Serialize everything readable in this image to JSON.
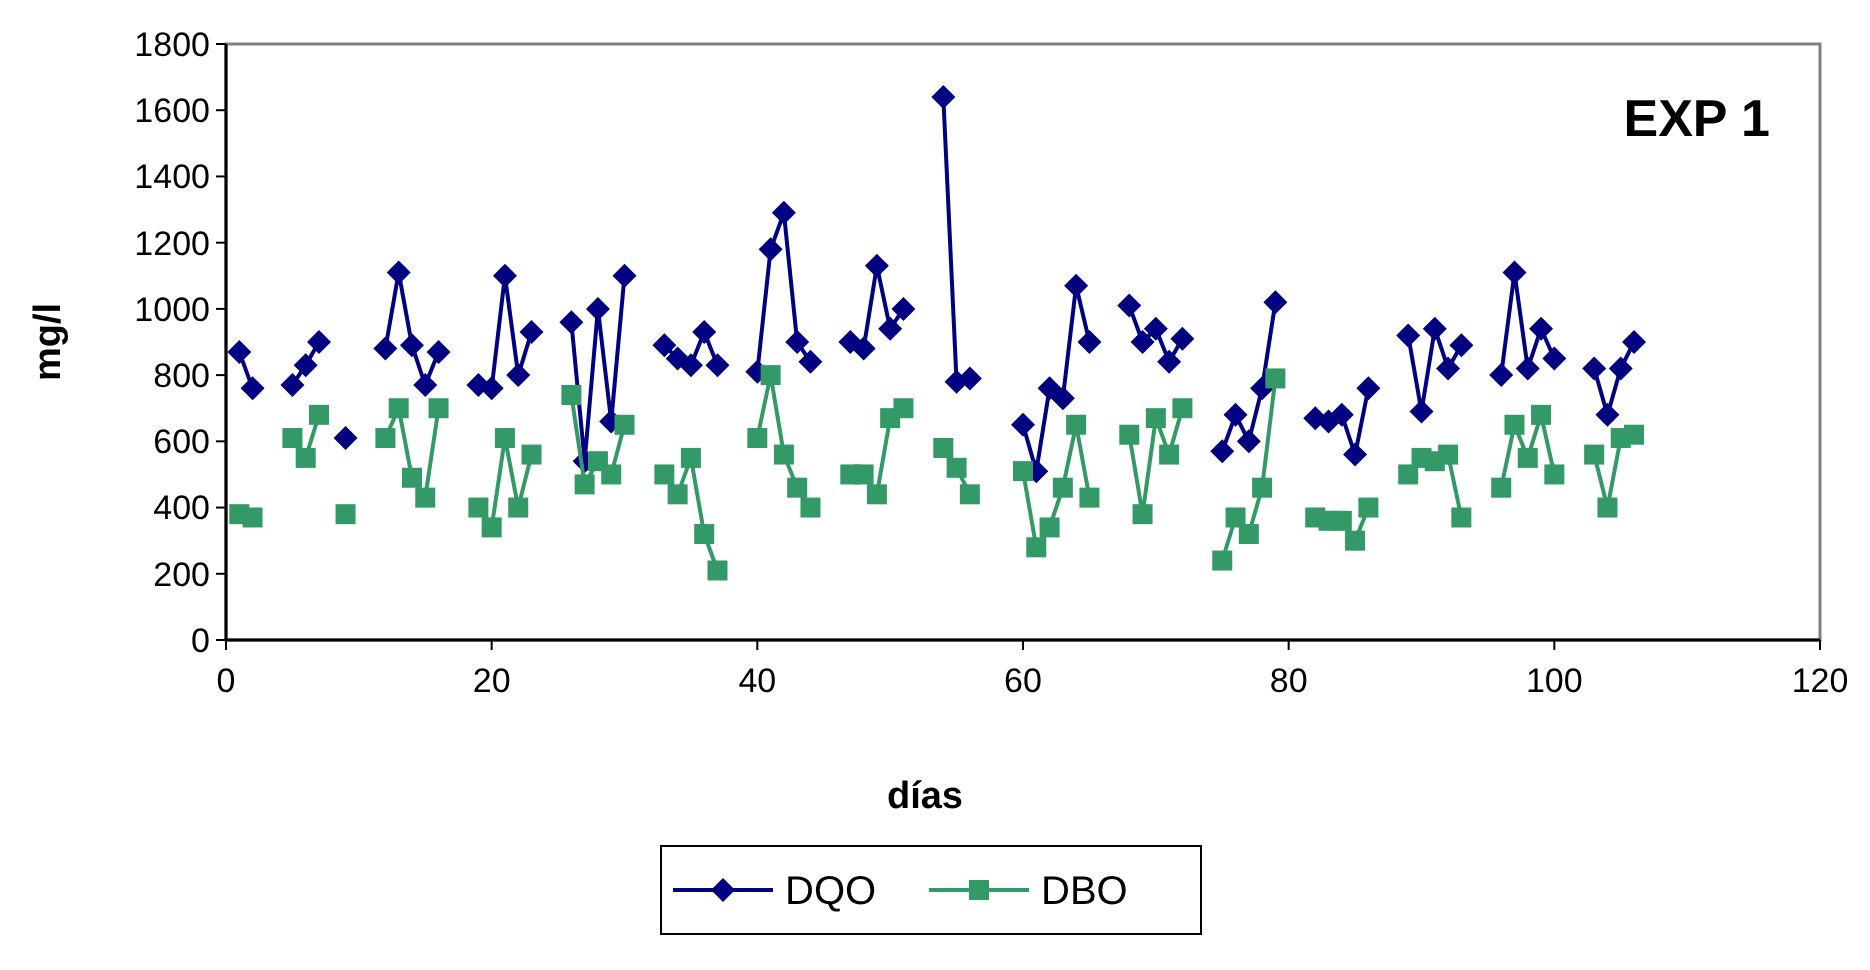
{
  "chart_data": {
    "type": "line",
    "title": "EXP 1",
    "xlabel": "días",
    "ylabel": "mg/l",
    "xlim": [
      0,
      120
    ],
    "xticks": [
      0,
      20,
      40,
      60,
      80,
      100,
      120
    ],
    "ylim": [
      0,
      1800
    ],
    "yticks": [
      0,
      200,
      400,
      600,
      800,
      1000,
      1200,
      1400,
      1600,
      1800
    ],
    "grid": false,
    "legend": "bottom",
    "line_style": "solid",
    "x": [
      1,
      2,
      3,
      5,
      6,
      7,
      8,
      9,
      10,
      12,
      13,
      14,
      15,
      16,
      17,
      19,
      20,
      21,
      22,
      23,
      24,
      26,
      27,
      28,
      29,
      30,
      31,
      33,
      34,
      35,
      36,
      37,
      38,
      40,
      41,
      42,
      43,
      44,
      45,
      47,
      48,
      49,
      50,
      51,
      52,
      54,
      55,
      56,
      57,
      60,
      61,
      62,
      63,
      64,
      65,
      66,
      68,
      69,
      70,
      71,
      72,
      73,
      75,
      76,
      77,
      78,
      79,
      80,
      82,
      83,
      84,
      85,
      86,
      87,
      89,
      90,
      91,
      92,
      93,
      94,
      96,
      97,
      98,
      99,
      100,
      101,
      103,
      104,
      105,
      106
    ],
    "series": [
      {
        "name": "DQO",
        "color": "#000080",
        "marker": "diamond",
        "values": [
          870,
          760,
          null,
          770,
          830,
          900,
          null,
          610,
          null,
          880,
          1110,
          890,
          770,
          870,
          null,
          770,
          760,
          1100,
          800,
          930,
          null,
          960,
          540,
          1000,
          660,
          1100,
          null,
          890,
          850,
          830,
          930,
          830,
          null,
          810,
          1180,
          1290,
          900,
          840,
          null,
          900,
          880,
          1130,
          940,
          1000,
          null,
          1640,
          780,
          790,
          null,
          650,
          510,
          760,
          730,
          1070,
          900,
          null,
          1010,
          900,
          940,
          840,
          910,
          null,
          570,
          680,
          600,
          760,
          1020,
          null,
          670,
          660,
          680,
          560,
          760,
          null,
          920,
          690,
          940,
          820,
          890,
          null,
          800,
          1110,
          820,
          940,
          850,
          null,
          820,
          680,
          820,
          900
        ]
      },
      {
        "name": "DBO",
        "color": "#339966",
        "marker": "square",
        "values": [
          380,
          370,
          null,
          610,
          550,
          680,
          null,
          380,
          null,
          610,
          700,
          490,
          430,
          700,
          null,
          400,
          340,
          610,
          400,
          560,
          null,
          740,
          470,
          540,
          500,
          650,
          null,
          500,
          440,
          550,
          320,
          210,
          null,
          610,
          800,
          560,
          460,
          400,
          null,
          500,
          500,
          440,
          670,
          700,
          null,
          580,
          520,
          440,
          null,
          510,
          280,
          340,
          460,
          650,
          430,
          null,
          620,
          380,
          670,
          560,
          700,
          null,
          240,
          370,
          320,
          460,
          790,
          null,
          370,
          360,
          360,
          300,
          400,
          null,
          500,
          550,
          540,
          560,
          370,
          null,
          460,
          650,
          550,
          680,
          500,
          null,
          560,
          400,
          610,
          620
        ]
      }
    ]
  }
}
